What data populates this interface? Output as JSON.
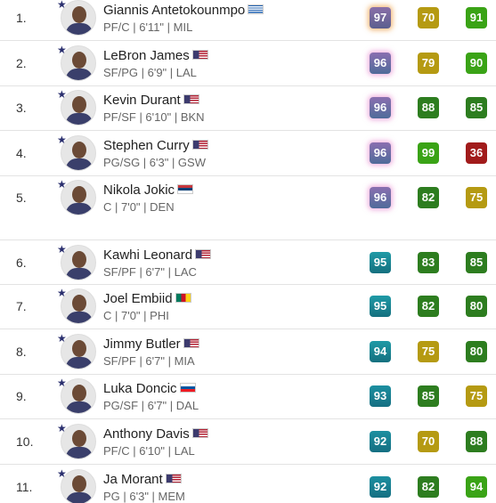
{
  "players": [
    {
      "rank": "1.",
      "name": "Giannis Antetokounmpo",
      "info": "PF/C | 6'11\" | MIL",
      "ratings": [
        97,
        70,
        91
      ]
    },
    {
      "rank": "2.",
      "name": "LeBron James",
      "info": "SF/PG | 6'9\" | LAL",
      "ratings": [
        96,
        79,
        90
      ]
    },
    {
      "rank": "3.",
      "name": "Kevin Durant",
      "info": "PF/SF | 6'10\" | BKN",
      "ratings": [
        96,
        88,
        85
      ]
    },
    {
      "rank": "4.",
      "name": "Stephen Curry",
      "info": "PG/SG | 6'3\" | GSW",
      "ratings": [
        96,
        99,
        36
      ]
    },
    {
      "rank": "5.",
      "name": "Nikola Jokic",
      "info": "C | 7'0\" | DEN",
      "ratings": [
        96,
        82,
        75
      ]
    },
    {
      "rank": "6.",
      "name": "Kawhi Leonard",
      "info": "SF/PF | 6'7\" | LAC",
      "ratings": [
        95,
        83,
        85
      ]
    },
    {
      "rank": "7.",
      "name": "Joel Embiid",
      "info": "C | 7'0\" | PHI",
      "ratings": [
        95,
        82,
        80
      ]
    },
    {
      "rank": "8.",
      "name": "Jimmy Butler",
      "info": "SF/PF | 6'7\" | MIA",
      "ratings": [
        94,
        75,
        80
      ]
    },
    {
      "rank": "9.",
      "name": "Luka Doncic",
      "info": "PG/SF | 6'7\" | DAL",
      "ratings": [
        93,
        85,
        75
      ]
    },
    {
      "rank": "10.",
      "name": "Anthony Davis",
      "info": "PF/C | 6'10\" | LAL",
      "ratings": [
        92,
        70,
        88
      ]
    },
    {
      "rank": "11.",
      "name": "Ja Morant",
      "info": "PG | 6'3\" | MEM",
      "ratings": [
        92,
        82,
        94
      ]
    }
  ]
}
